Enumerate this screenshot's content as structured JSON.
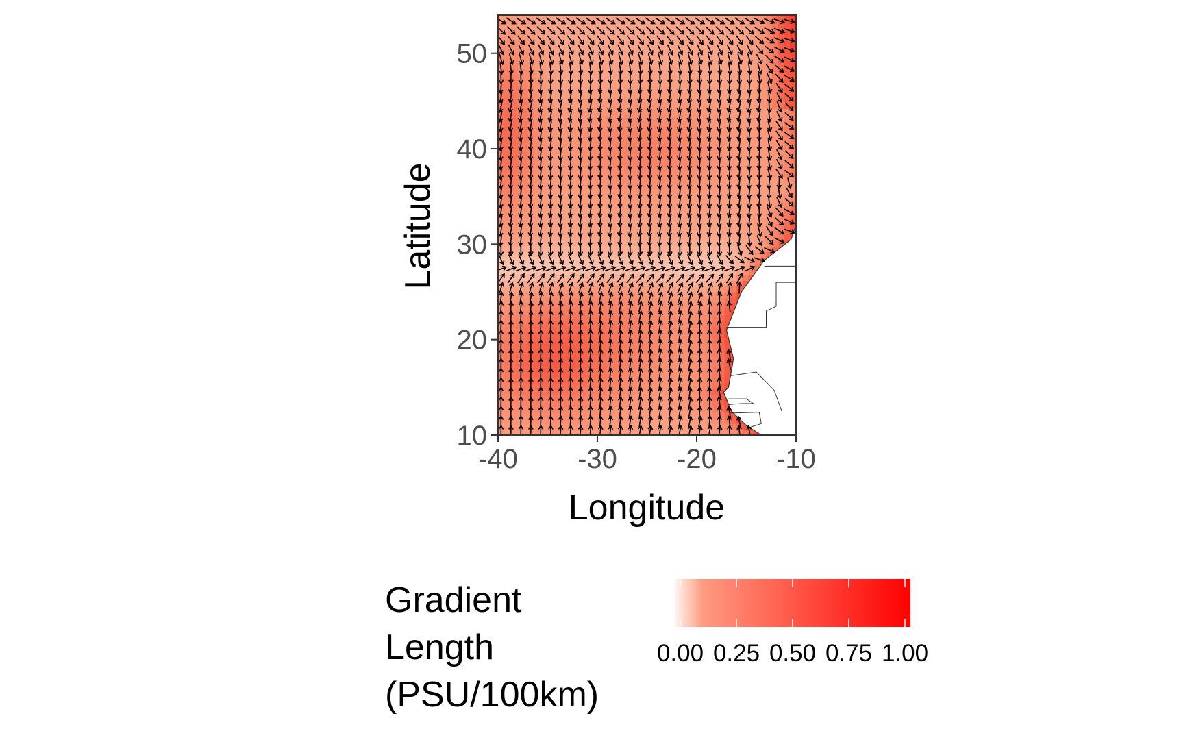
{
  "chart_data": {
    "type": "vector-field",
    "xlabel": "Longitude",
    "ylabel": "Latitude",
    "xlim": [
      -40,
      -10
    ],
    "ylim": [
      10,
      54
    ],
    "x_ticks": [
      {
        "value": -40,
        "label": "-40"
      },
      {
        "value": -30,
        "label": "-30"
      },
      {
        "value": -20,
        "label": "-20"
      },
      {
        "value": -10,
        "label": "-10"
      }
    ],
    "y_ticks": [
      {
        "value": 10,
        "label": "10"
      },
      {
        "value": 20,
        "label": "20"
      },
      {
        "value": 30,
        "label": "30"
      },
      {
        "value": 40,
        "label": "40"
      },
      {
        "value": 50,
        "label": "50"
      }
    ],
    "fill_legend": {
      "title_lines": [
        "Gradient",
        "Length",
        "(PSU/100km)"
      ],
      "min": 0,
      "max": 1,
      "low_color": "#fff5f0",
      "high_color": "#ff0000",
      "ticks": [
        {
          "value": 0.0,
          "label": "0.00"
        },
        {
          "value": 0.25,
          "label": "0.25"
        },
        {
          "value": 0.5,
          "label": "0.50"
        },
        {
          "value": 0.75,
          "label": "0.75"
        },
        {
          "value": 1.0,
          "label": "1.00"
        }
      ]
    },
    "grid": false,
    "arrow_color": "#000000",
    "land_color": "#ffffff",
    "convergence_latitude": 27.5
  }
}
